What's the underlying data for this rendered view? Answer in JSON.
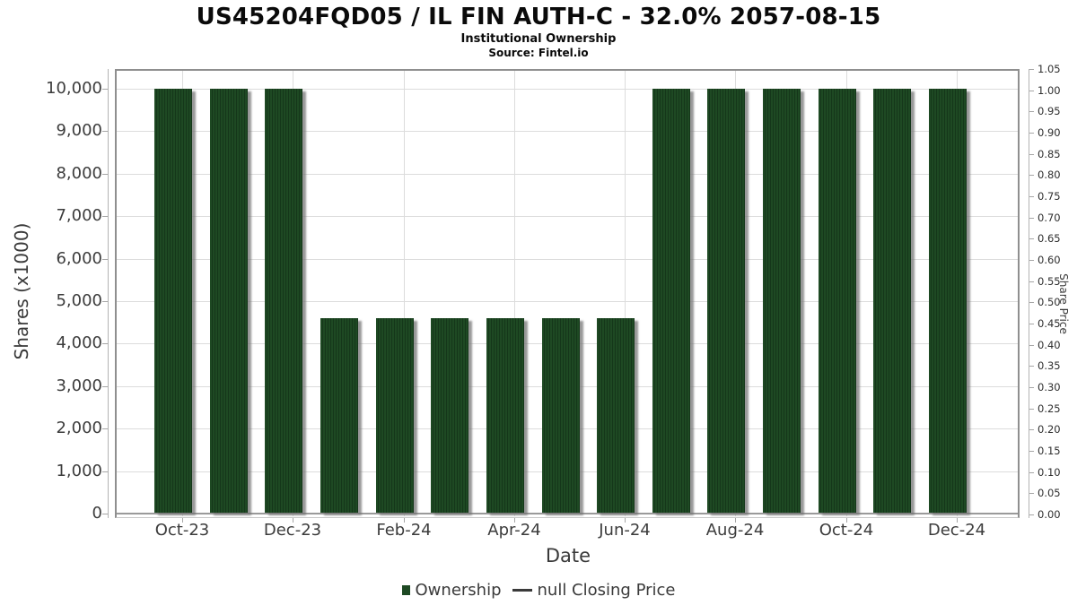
{
  "chart_data": {
    "type": "bar",
    "title": "US45204FQD05 / IL FIN AUTH-C - 32.0% 2057-08-15",
    "subtitle": "Institutional Ownership",
    "source": "Source: Fintel.io",
    "xlabel": "Date",
    "ylabel": "Shares (x1000)",
    "ylabel_right": "Share Price",
    "categories": [
      "Oct-23",
      "Nov-23",
      "Dec-23",
      "Jan-24",
      "Feb-24",
      "Mar-24",
      "Apr-24",
      "May-24",
      "Jun-24",
      "Jul-24",
      "Aug-24",
      "Sep-24",
      "Oct-24",
      "Nov-24",
      "Dec-24"
    ],
    "series": [
      {
        "name": "Ownership",
        "values": [
          10000,
          10000,
          10000,
          4600,
          4600,
          4600,
          4600,
          4600,
          4600,
          10000,
          10000,
          10000,
          10000,
          10000,
          10000
        ]
      }
    ],
    "x_tick_labels": [
      "Oct-23",
      "Dec-23",
      "Feb-24",
      "Apr-24",
      "Jun-24",
      "Aug-24",
      "Oct-24",
      "Dec-24"
    ],
    "ylim_left": [
      0,
      10000
    ],
    "ytick_step_left": 1000,
    "left_tick_labels": [
      "0",
      "1,000",
      "2,000",
      "3,000",
      "4,000",
      "5,000",
      "6,000",
      "7,000",
      "8,000",
      "9,000",
      "10,000"
    ],
    "ylim_right": [
      0,
      1.05
    ],
    "ytick_step_right": 0.05,
    "right_tick_labels": [
      "0.00",
      "0.05",
      "0.10",
      "0.15",
      "0.20",
      "0.25",
      "0.30",
      "0.35",
      "0.40",
      "0.45",
      "0.50",
      "0.55",
      "0.60",
      "0.65",
      "0.70",
      "0.75",
      "0.80",
      "0.85",
      "0.90",
      "0.95",
      "1.00",
      "1.05"
    ],
    "grid": true,
    "legend_position": "bottom",
    "legend": [
      {
        "label": "Ownership",
        "marker": "square",
        "color": "#1e4923"
      },
      {
        "label": "null Closing Price",
        "marker": "dash",
        "color": "#3a3a3a"
      }
    ],
    "bar_color": "#1e4923",
    "bar_hatch_color": "#15371a",
    "shadow_color": "#8c8c8c",
    "grid_color": "#dcdcdc"
  }
}
